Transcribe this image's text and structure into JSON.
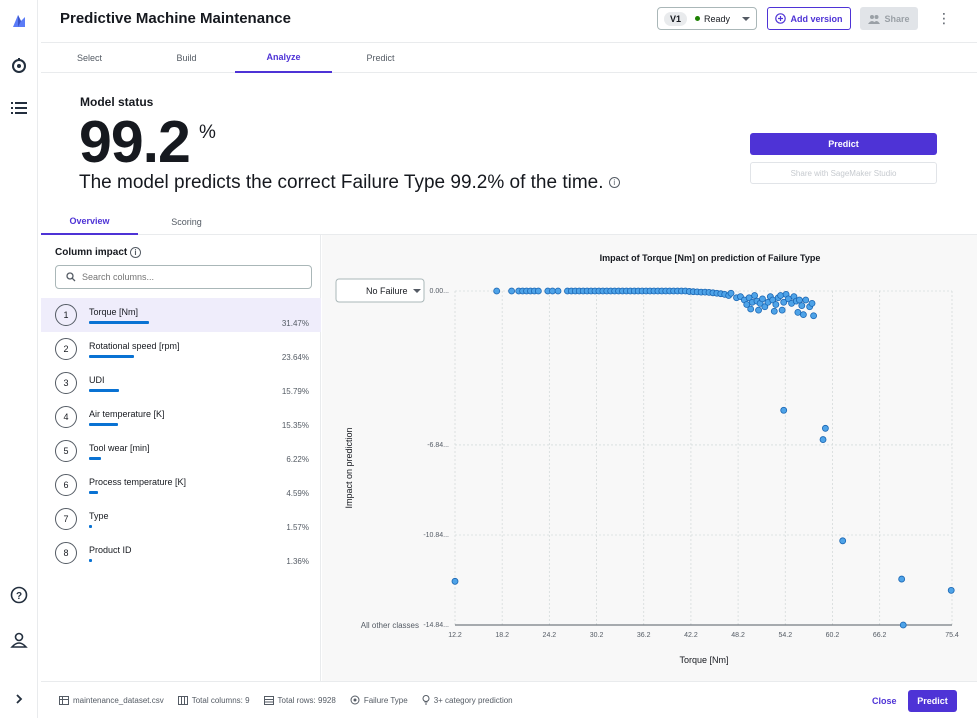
{
  "header": {
    "title": "Predictive Machine Maintenance",
    "version": "V1",
    "status": "Ready",
    "add_version": "Add version",
    "share": "Share"
  },
  "tabs": [
    {
      "label": "Select"
    },
    {
      "label": "Build"
    },
    {
      "label": "Analyze"
    },
    {
      "label": "Predict"
    }
  ],
  "model": {
    "status_label": "Model status",
    "accuracy": "99.2",
    "pct": "%",
    "sentence": "The model predicts the correct Failure Type 99.2% of the time.",
    "predict": "Predict",
    "share_studio": "Share with SageMaker Studio"
  },
  "subtabs": [
    {
      "label": "Overview"
    },
    {
      "label": "Scoring"
    }
  ],
  "column_impact": {
    "label": "Column impact",
    "search_placeholder": "Search columns...",
    "rows": [
      {
        "rank": "1",
        "name": "Torque [Nm]",
        "pct": "31.47%",
        "value": 31.47
      },
      {
        "rank": "2",
        "name": "Rotational speed [rpm]",
        "pct": "23.64%",
        "value": 23.64
      },
      {
        "rank": "3",
        "name": "UDI",
        "pct": "15.79%",
        "value": 15.79
      },
      {
        "rank": "4",
        "name": "Air temperature [K]",
        "pct": "15.35%",
        "value": 15.35
      },
      {
        "rank": "5",
        "name": "Tool wear [min]",
        "pct": "6.22%",
        "value": 6.22
      },
      {
        "rank": "6",
        "name": "Process temperature [K]",
        "pct": "4.59%",
        "value": 4.59
      },
      {
        "rank": "7",
        "name": "Type",
        "pct": "1.57%",
        "value": 1.57
      },
      {
        "rank": "8",
        "name": "Product ID",
        "pct": "1.36%",
        "value": 1.36
      }
    ]
  },
  "chart_select": "No Failure",
  "chart_data": {
    "type": "scatter",
    "title": "Impact of Torque [Nm] on prediction of Failure Type",
    "xlabel": "Torque [Nm]",
    "ylabel": "Impact on prediction",
    "xlim": [
      12.2,
      75.4
    ],
    "ylim": [
      -14.84,
      0.0
    ],
    "xticks": [
      "12.2",
      "18.2",
      "24.2",
      "30.2",
      "36.2",
      "42.2",
      "48.2",
      "54.2",
      "60.2",
      "66.2",
      "75.4"
    ],
    "xtick_values": [
      12.2,
      18.2,
      24.2,
      30.2,
      36.2,
      42.2,
      48.2,
      54.2,
      60.2,
      66.2,
      75.4
    ],
    "yticks": [
      "0.00...",
      "-6.84...",
      "-10.84...",
      "-14.84..."
    ],
    "ytick_values": [
      0.0,
      -6.84,
      -10.84,
      -14.84
    ],
    "ybottom_label": "All other classes",
    "grid": true,
    "points": [
      {
        "x": 12.2,
        "y": -12.9
      },
      {
        "x": 17.5,
        "y": 0.0
      },
      {
        "x": 19.4,
        "y": 0.0
      },
      {
        "x": 20.3,
        "y": 0.0
      },
      {
        "x": 20.8,
        "y": 0.0
      },
      {
        "x": 21.3,
        "y": 0.0
      },
      {
        "x": 21.8,
        "y": 0.0
      },
      {
        "x": 22.3,
        "y": 0.0
      },
      {
        "x": 22.8,
        "y": 0.0
      },
      {
        "x": 24.0,
        "y": 0.0
      },
      {
        "x": 24.6,
        "y": 0.0
      },
      {
        "x": 25.3,
        "y": 0.0
      },
      {
        "x": 26.5,
        "y": 0.0
      },
      {
        "x": 27.0,
        "y": 0.0
      },
      {
        "x": 27.5,
        "y": 0.0
      },
      {
        "x": 28.0,
        "y": 0.0
      },
      {
        "x": 28.5,
        "y": 0.0
      },
      {
        "x": 29.0,
        "y": 0.0
      },
      {
        "x": 29.5,
        "y": 0.0
      },
      {
        "x": 30.0,
        "y": 0.0
      },
      {
        "x": 30.5,
        "y": 0.0
      },
      {
        "x": 31.0,
        "y": 0.0
      },
      {
        "x": 31.5,
        "y": 0.0
      },
      {
        "x": 32.0,
        "y": 0.0
      },
      {
        "x": 32.5,
        "y": 0.0
      },
      {
        "x": 33.0,
        "y": 0.0
      },
      {
        "x": 33.5,
        "y": 0.0
      },
      {
        "x": 34.0,
        "y": 0.0
      },
      {
        "x": 34.5,
        "y": 0.0
      },
      {
        "x": 35.0,
        "y": 0.0
      },
      {
        "x": 35.5,
        "y": 0.0
      },
      {
        "x": 36.0,
        "y": 0.0
      },
      {
        "x": 36.5,
        "y": 0.0
      },
      {
        "x": 37.0,
        "y": 0.0
      },
      {
        "x": 37.5,
        "y": 0.0
      },
      {
        "x": 38.0,
        "y": 0.0
      },
      {
        "x": 38.5,
        "y": 0.0
      },
      {
        "x": 39.0,
        "y": 0.0
      },
      {
        "x": 39.5,
        "y": 0.0
      },
      {
        "x": 40.0,
        "y": 0.0
      },
      {
        "x": 40.5,
        "y": 0.0
      },
      {
        "x": 41.0,
        "y": 0.0
      },
      {
        "x": 41.5,
        "y": 0.0
      },
      {
        "x": 42.0,
        "y": -0.02
      },
      {
        "x": 42.5,
        "y": -0.03
      },
      {
        "x": 43.0,
        "y": -0.04
      },
      {
        "x": 43.5,
        "y": -0.05
      },
      {
        "x": 44.0,
        "y": -0.05
      },
      {
        "x": 44.5,
        "y": -0.06
      },
      {
        "x": 45.0,
        "y": -0.08
      },
      {
        "x": 45.5,
        "y": -0.1
      },
      {
        "x": 46.0,
        "y": -0.12
      },
      {
        "x": 46.5,
        "y": -0.15
      },
      {
        "x": 47.0,
        "y": -0.2
      },
      {
        "x": 47.3,
        "y": -0.1
      },
      {
        "x": 48.0,
        "y": -0.3
      },
      {
        "x": 48.5,
        "y": -0.25
      },
      {
        "x": 49.0,
        "y": -0.4
      },
      {
        "x": 49.3,
        "y": -0.6
      },
      {
        "x": 49.6,
        "y": -0.3
      },
      {
        "x": 50.0,
        "y": -0.5
      },
      {
        "x": 50.3,
        "y": -0.2
      },
      {
        "x": 50.6,
        "y": -0.45
      },
      {
        "x": 51.0,
        "y": -0.55
      },
      {
        "x": 51.3,
        "y": -0.35
      },
      {
        "x": 51.6,
        "y": -0.7
      },
      {
        "x": 52.0,
        "y": -0.5
      },
      {
        "x": 52.3,
        "y": -0.25
      },
      {
        "x": 52.6,
        "y": -0.4
      },
      {
        "x": 53.0,
        "y": -0.6
      },
      {
        "x": 53.3,
        "y": -0.3
      },
      {
        "x": 53.6,
        "y": -0.2
      },
      {
        "x": 54.0,
        "y": -0.5
      },
      {
        "x": 54.3,
        "y": -0.15
      },
      {
        "x": 54.6,
        "y": -0.35
      },
      {
        "x": 55.0,
        "y": -0.55
      },
      {
        "x": 55.3,
        "y": -0.25
      },
      {
        "x": 55.6,
        "y": -0.45
      },
      {
        "x": 56.0,
        "y": -0.4
      },
      {
        "x": 56.3,
        "y": -0.65
      },
      {
        "x": 56.8,
        "y": -0.4
      },
      {
        "x": 57.3,
        "y": -0.7
      },
      {
        "x": 57.6,
        "y": -0.55
      },
      {
        "x": 49.8,
        "y": -0.8
      },
      {
        "x": 50.8,
        "y": -0.85
      },
      {
        "x": 52.8,
        "y": -0.9
      },
      {
        "x": 53.8,
        "y": -0.85
      },
      {
        "x": 55.8,
        "y": -0.95
      },
      {
        "x": 56.5,
        "y": -1.05
      },
      {
        "x": 57.8,
        "y": -1.1
      },
      {
        "x": 54.0,
        "y": -5.3
      },
      {
        "x": 59.3,
        "y": -6.1
      },
      {
        "x": 59.0,
        "y": -6.6
      },
      {
        "x": 61.5,
        "y": -11.1
      },
      {
        "x": 69.0,
        "y": -12.8
      },
      {
        "x": 75.3,
        "y": -13.3
      },
      {
        "x": 69.2,
        "y": -14.84
      }
    ]
  },
  "footer": {
    "dataset": "maintenance_dataset.csv",
    "columns": "Total columns: 9",
    "rows": "Total rows: 9928",
    "target": "Failure Type",
    "problem": "3+ category prediction",
    "close": "Close",
    "predict": "Predict"
  }
}
